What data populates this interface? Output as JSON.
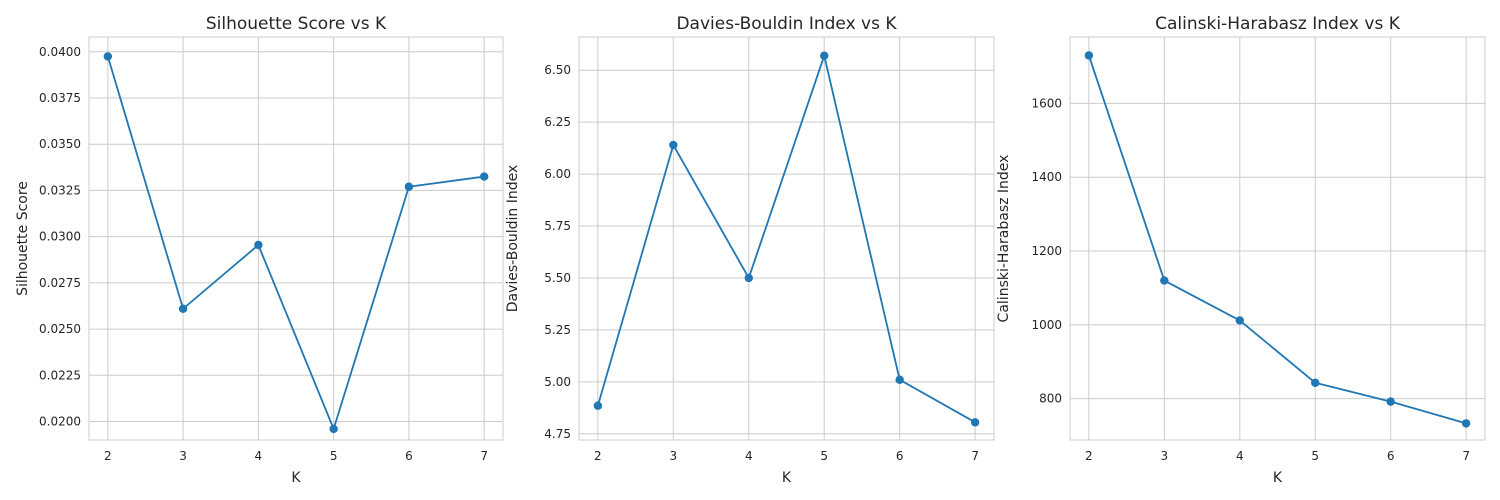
{
  "style": {
    "line_color": "#1f77b4",
    "grid_color": "#cccccc",
    "spine_color": "#cccccc"
  },
  "chart_data": [
    {
      "type": "line",
      "title": "Silhouette Score vs K",
      "xlabel": "K",
      "ylabel": "Silhouette Score",
      "x": [
        2,
        3,
        4,
        5,
        6,
        7
      ],
      "y": [
        0.03975,
        0.0261,
        0.02955,
        0.0196,
        0.0327,
        0.03325
      ],
      "xlim": [
        1.75,
        7.25
      ],
      "ylim": [
        0.019,
        0.0408
      ],
      "xticks": [
        2,
        3,
        4,
        5,
        6,
        7
      ],
      "xtick_labels": [
        "2",
        "3",
        "4",
        "5",
        "6",
        "7"
      ],
      "yticks": [
        0.02,
        0.0225,
        0.025,
        0.0275,
        0.03,
        0.0325,
        0.035,
        0.0375,
        0.04
      ],
      "ytick_labels": [
        "0.0200",
        "0.0225",
        "0.0250",
        "0.0275",
        "0.0300",
        "0.0325",
        "0.0350",
        "0.0375",
        "0.0400"
      ],
      "grid": true,
      "marker": "circle"
    },
    {
      "type": "line",
      "title": "Davies-Bouldin Index vs K",
      "xlabel": "K",
      "ylabel": "Davies-Bouldin Index",
      "x": [
        2,
        3,
        4,
        5,
        6,
        7
      ],
      "y": [
        4.885,
        6.14,
        5.5,
        6.57,
        5.01,
        4.805
      ],
      "xlim": [
        1.75,
        7.25
      ],
      "ylim": [
        4.72,
        6.66
      ],
      "xticks": [
        2,
        3,
        4,
        5,
        6,
        7
      ],
      "xtick_labels": [
        "2",
        "3",
        "4",
        "5",
        "6",
        "7"
      ],
      "yticks": [
        4.75,
        5.0,
        5.25,
        5.5,
        5.75,
        6.0,
        6.25,
        6.5
      ],
      "ytick_labels": [
        "4.75",
        "5.00",
        "5.25",
        "5.50",
        "5.75",
        "6.00",
        "6.25",
        "6.50"
      ],
      "grid": true,
      "marker": "circle"
    },
    {
      "type": "line",
      "title": "Calinski-Harabasz Index vs K",
      "xlabel": "K",
      "ylabel": "Calinski-Harabasz Index",
      "x": [
        2,
        3,
        4,
        5,
        6,
        7
      ],
      "y": [
        1730,
        1120,
        1012,
        843,
        792,
        733
      ],
      "xlim": [
        1.75,
        7.25
      ],
      "ylim": [
        688,
        1780
      ],
      "xticks": [
        2,
        3,
        4,
        5,
        6,
        7
      ],
      "xtick_labels": [
        "2",
        "3",
        "4",
        "5",
        "6",
        "7"
      ],
      "yticks": [
        800,
        1000,
        1200,
        1400,
        1600
      ],
      "ytick_labels": [
        "800",
        "1000",
        "1200",
        "1400",
        "1600"
      ],
      "grid": true,
      "marker": "circle"
    }
  ]
}
